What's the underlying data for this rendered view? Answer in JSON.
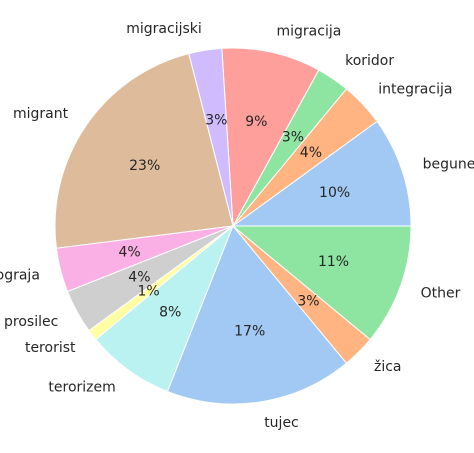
{
  "chart_data": {
    "type": "pie",
    "title": "",
    "start_angle_deg": 0,
    "direction": "counterclockwise",
    "slices": [
      {
        "label": "begunec",
        "value": 10,
        "pct_label": "10%",
        "color": "#a1c9f4"
      },
      {
        "label": "integracija",
        "value": 4,
        "pct_label": "4%",
        "color": "#ffb482"
      },
      {
        "label": "koridor",
        "value": 3,
        "pct_label": "3%",
        "color": "#8de5a1"
      },
      {
        "label": "migracija",
        "value": 9,
        "pct_label": "9%",
        "color": "#ff9f9b"
      },
      {
        "label": "migracijski",
        "value": 3,
        "pct_label": "3%",
        "color": "#d0bbff"
      },
      {
        "label": "migrant",
        "value": 23,
        "pct_label": "23%",
        "color": "#debb9b"
      },
      {
        "label": "ograja",
        "value": 4,
        "pct_label": "4%",
        "color": "#fab0e4"
      },
      {
        "label": "prosilec",
        "value": 4,
        "pct_label": "4%",
        "color": "#cfcfcf"
      },
      {
        "label": "terorist",
        "value": 1,
        "pct_label": "1%",
        "color": "#fffea3"
      },
      {
        "label": "terorizem",
        "value": 8,
        "pct_label": "8%",
        "color": "#b9f2f0"
      },
      {
        "label": "tujec",
        "value": 17,
        "pct_label": "17%",
        "color": "#a1c9f4"
      },
      {
        "label": "žica",
        "value": 3,
        "pct_label": "3%",
        "color": "#ffb482"
      },
      {
        "label": "Other",
        "value": 11,
        "pct_label": "11%",
        "color": "#8de5a1"
      }
    ]
  }
}
